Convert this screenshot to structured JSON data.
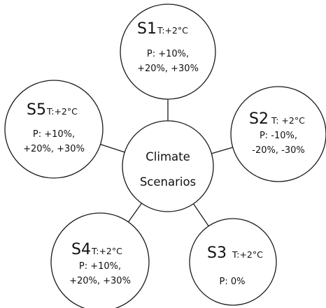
{
  "diagram": {
    "center": {
      "line1": "Climate",
      "line2": "Scenarios"
    },
    "scenarios": [
      {
        "id": "S1",
        "temperature": "T:+2°C",
        "precip_line1": "P: +10%,",
        "precip_line2": "+20%, +30%"
      },
      {
        "id": "S2",
        "temperature": "T: +2°C",
        "precip_line1": "P: -10%,",
        "precip_line2": "-20%, -30%"
      },
      {
        "id": "S3",
        "temperature": "T:+2°C",
        "precip_line1": "P: 0%",
        "precip_line2": ""
      },
      {
        "id": "S4",
        "temperature": "T:+2°C",
        "precip_line1": "P: +10%,",
        "precip_line2": "+20%, +30%"
      },
      {
        "id": "S5",
        "temperature": "T:+2°C",
        "precip_line1": "P: +10%,",
        "precip_line2": "+20%, +30%"
      }
    ]
  }
}
